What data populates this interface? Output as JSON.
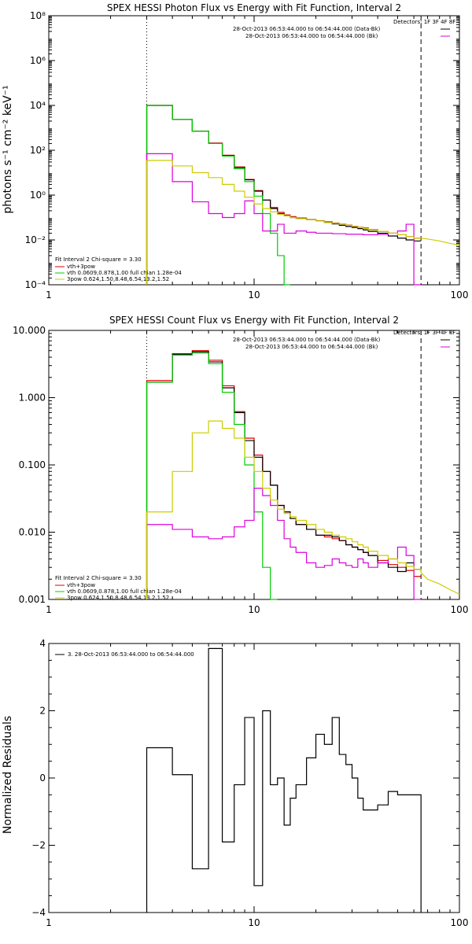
{
  "chart_data": [
    {
      "type": "line",
      "title": "SPEX HESSI Photon Flux vs Energy with Fit Function, Interval 2",
      "ylabel": "photons s⁻¹ cm⁻² keV⁻¹",
      "xlabel": "",
      "xscale": "log",
      "yscale": "log",
      "xlim": [
        1,
        100
      ],
      "ylim": [
        0.0001,
        100000000
      ],
      "x_ticks": [
        "1",
        "10",
        "100"
      ],
      "y_ticks": [
        "10⁻⁴",
        "10⁻²",
        "10⁰",
        "10²",
        "10⁴",
        "10⁶",
        "10⁸"
      ],
      "y_tick_values": [
        0.0001,
        0.01,
        1,
        100,
        10000,
        1000000,
        100000000
      ],
      "vlines": [
        {
          "x": 3,
          "style": "dotted"
        },
        {
          "x": 65,
          "style": "dashed"
        }
      ],
      "legend_top": {
        "header": "Detectors: 1F 3F 4F 8F",
        "entries": [
          {
            "label": "28-Oct-2013 06:53:44.000 to 06:54:44.000 (Data-Bk)",
            "color": "#000000"
          },
          {
            "label": "28-Oct-2013 06:53:44.000 to 06:54:44.000 (Bk)",
            "color": "#dd00dd"
          }
        ]
      },
      "legend_bottom": {
        "header": "Fit Interval  2    Chi-square = 3.30",
        "entries": [
          {
            "label": "vth+3pow",
            "color": "#dd0000"
          },
          {
            "label": "vth 0.0609,0.878,1.00  full chian 1.28e-04",
            "color": "#00cc00"
          },
          {
            "label": "3pow 0.624,1.50,8.48,6.54,13.2,1.52",
            "color": "#cccc00"
          }
        ]
      },
      "edges": [
        3,
        4,
        5,
        6,
        7,
        8,
        9,
        10,
        11,
        12,
        13,
        14,
        15,
        16,
        18,
        20,
        22,
        24,
        26,
        28,
        30,
        32,
        34,
        36,
        40,
        45,
        50,
        55,
        60,
        65
      ],
      "series": [
        {
          "color": "#dd0000",
          "values": [
            10000,
            2400,
            700,
            210,
            60,
            18,
            5,
            1.6,
            0.6,
            0.28,
            0.17,
            0.13,
            0.11,
            0.095,
            0.082,
            0.072,
            0.064,
            0.057,
            0.051,
            0.046,
            0.041,
            0.037,
            0.034,
            0.029,
            0.024,
            0.02,
            0.017,
            0.014,
            0.012
          ]
        },
        {
          "color": "#000000",
          "values": [
            10000,
            2400,
            700,
            200,
            58,
            17,
            4.8,
            1.5,
            0.6,
            0.25,
            0.15,
            0.12,
            0.1,
            0.09,
            0.08,
            0.07,
            0.06,
            0.052,
            0.045,
            0.04,
            0.036,
            0.032,
            0.028,
            0.024,
            0.02,
            0.015,
            0.012,
            0.01,
            0.009
          ]
        },
        {
          "color": "#00cc00",
          "values": [
            10000,
            2400,
            700,
            200,
            55,
            15,
            4,
            0.9,
            0.15,
            0.02,
            0.002,
            0.0001
          ]
        },
        {
          "color": "#dd00dd",
          "values": [
            70,
            4,
            0.5,
            0.15,
            0.1,
            0.15,
            0.55,
            0.15,
            0.025,
            0.025,
            0.05,
            0.02,
            0.02,
            0.025,
            0.022,
            0.02,
            0.02,
            0.019,
            0.019,
            0.018,
            0.018,
            0.018,
            0.017,
            0.017,
            0.018,
            0.02,
            0.025,
            0.05,
            0.0001
          ]
        },
        {
          "color": "#cccc00",
          "values": [
            35,
            20,
            10,
            6,
            3,
            1.5,
            0.8,
            0.4,
            0.25,
            0.18,
            0.14,
            0.12,
            0.1,
            0.09,
            0.08,
            0.07,
            0.06,
            0.055,
            0.05,
            0.045,
            0.04,
            0.036,
            0.032,
            0.028,
            0.024,
            0.02,
            0.017,
            0.014,
            0.012
          ],
          "extension": {
            "x": [
              65,
              70,
              80,
              90,
              100
            ],
            "values": [
              0.012,
              0.011,
              0.009,
              0.007,
              0.006
            ]
          }
        }
      ]
    },
    {
      "type": "line",
      "title": "SPEX HESSI Count Flux vs Energy with Fit Function, Interval 2",
      "ylabel": "",
      "xlabel": "",
      "xscale": "log",
      "yscale": "log",
      "xlim": [
        1,
        100
      ],
      "ylim": [
        0.001,
        10
      ],
      "x_ticks": [
        "1",
        "10",
        "100"
      ],
      "y_ticks": [
        "0.001",
        "0.010",
        "0.100",
        "1.000",
        "10.000"
      ],
      "y_tick_values": [
        0.001,
        0.01,
        0.1,
        1,
        10
      ],
      "vlines": [
        {
          "x": 3,
          "style": "dotted"
        },
        {
          "x": 65,
          "style": "dashed"
        }
      ],
      "legend_top": {
        "header": "Detectors: 1F 3F 4F 8F",
        "entries": [
          {
            "label": "28-Oct-2013 06:53:44.000 to 06:54:44.000 (Data-Bk)",
            "color": "#000000"
          },
          {
            "label": "28-Oct-2013 06:53:44.000 to 06:54:44.000 (Bk)",
            "color": "#dd00dd"
          }
        ]
      },
      "legend_bottom": {
        "header": "Fit Interval  2    Chi-square = 3.30",
        "entries": [
          {
            "label": "vth+3pow",
            "color": "#dd0000"
          },
          {
            "label": "vth 0.0609,0.878,1.00  full chian 1.28e-04",
            "color": "#00cc00"
          },
          {
            "label": "3pow 0.624,1.50,8.48,6.54,13.2,1.52",
            "color": "#cccc00"
          }
        ]
      },
      "edges": [
        3,
        4,
        5,
        6,
        7,
        8,
        9,
        10,
        11,
        12,
        13,
        14,
        15,
        16,
        18,
        20,
        22,
        24,
        26,
        28,
        30,
        32,
        34,
        36,
        40,
        45,
        50,
        55,
        60,
        65
      ],
      "series": [
        {
          "color": "#dd0000",
          "values": [
            1.8,
            4.5,
            5,
            3.6,
            1.5,
            0.62,
            0.25,
            0.14,
            0.08,
            0.05,
            0.025,
            0.02,
            0.016,
            0.013,
            0.011,
            0.009,
            0.0085,
            0.008,
            0.0075,
            0.0065,
            0.006,
            0.0055,
            0.005,
            0.0045,
            0.0038,
            0.0033,
            0.003,
            0.0027,
            0.0022
          ]
        },
        {
          "color": "#000000",
          "values": [
            1.7,
            4.4,
            4.8,
            3.4,
            1.4,
            0.6,
            0.23,
            0.13,
            0.08,
            0.05,
            0.025,
            0.02,
            0.016,
            0.013,
            0.011,
            0.009,
            0.009,
            0.0085,
            0.0075,
            0.0065,
            0.006,
            0.0055,
            0.005,
            0.0045,
            0.0035,
            0.003,
            0.0026,
            0.0035,
            0.0028
          ]
        },
        {
          "color": "#00cc00",
          "values": [
            1.7,
            4.3,
            4.6,
            3.2,
            1.2,
            0.4,
            0.1,
            0.02,
            0.003,
            0.001
          ]
        },
        {
          "color": "#dd00dd",
          "values": [
            0.013,
            0.011,
            0.0085,
            0.008,
            0.0085,
            0.012,
            0.015,
            0.045,
            0.035,
            0.025,
            0.015,
            0.008,
            0.006,
            0.005,
            0.0035,
            0.003,
            0.0032,
            0.004,
            0.0035,
            0.0032,
            0.003,
            0.004,
            0.0035,
            0.003,
            0.0035,
            0.004,
            0.006,
            0.0045,
            0.001
          ]
        },
        {
          "color": "#cccc00",
          "values": [
            0.02,
            0.08,
            0.3,
            0.45,
            0.35,
            0.25,
            0.13,
            0.08,
            0.045,
            0.03,
            0.022,
            0.019,
            0.017,
            0.015,
            0.013,
            0.011,
            0.01,
            0.009,
            0.0085,
            0.008,
            0.0072,
            0.0065,
            0.006,
            0.0052,
            0.0045,
            0.004,
            0.0035,
            0.0031,
            0.0028
          ],
          "extension": {
            "x": [
              65,
              70,
              80,
              90,
              100
            ],
            "values": [
              0.0025,
              0.002,
              0.0017,
              0.0014,
              0.0012
            ]
          }
        }
      ]
    },
    {
      "type": "line",
      "title": "",
      "ylabel": "Normalized Residuals",
      "xlabel": "",
      "xscale": "log",
      "yscale": "linear",
      "xlim": [
        1,
        100
      ],
      "ylim": [
        -4,
        4
      ],
      "x_ticks": [
        "1",
        "10",
        "100"
      ],
      "y_ticks": [
        "−4",
        "−2",
        "0",
        "2",
        "4"
      ],
      "y_tick_values": [
        -4,
        -2,
        0,
        2,
        4
      ],
      "legend": {
        "label": "3. 28-Oct-2013 06:53:44.000 to 06:54:44.000",
        "color": "#000000"
      },
      "edges": [
        3,
        4,
        5,
        6,
        7,
        8,
        9,
        10,
        11,
        12,
        13,
        14,
        15,
        16,
        18,
        20,
        22,
        24,
        26,
        28,
        30,
        32,
        34,
        36,
        40,
        45,
        50,
        55,
        60,
        65
      ],
      "series": [
        {
          "color": "#000000",
          "values": [
            0.9,
            0.1,
            -2.7,
            3.85,
            -1.9,
            -0.2,
            1.8,
            -3.2,
            2.0,
            -0.2,
            0.0,
            -1.4,
            -0.6,
            -0.2,
            0.6,
            1.3,
            1.0,
            1.8,
            0.7,
            0.4,
            0.0,
            -0.6,
            -0.95,
            -0.95,
            -0.8,
            -0.4,
            -0.5,
            -0.5,
            -0.5
          ],
          "drop_to_axis": true
        }
      ]
    }
  ]
}
